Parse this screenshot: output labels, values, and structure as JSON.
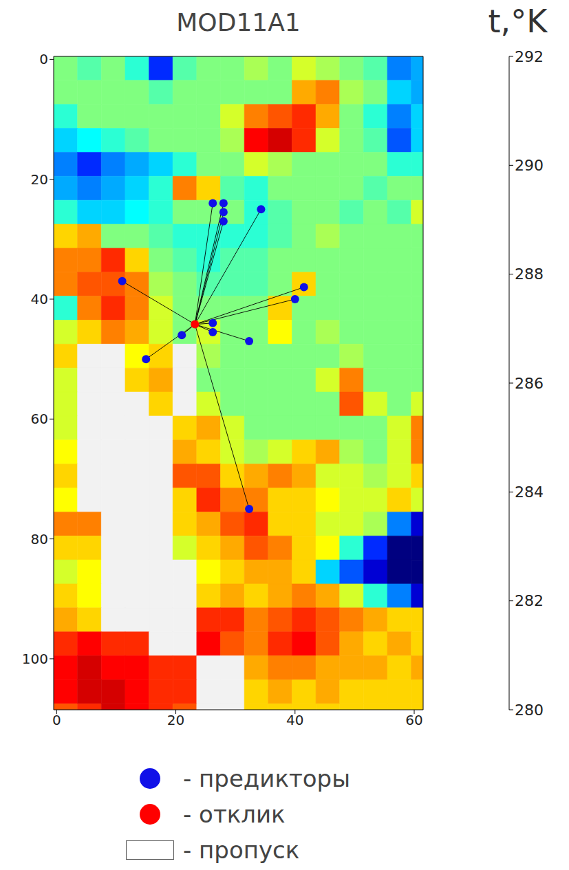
{
  "chart_data": {
    "type": "heatmap",
    "title": "MOD11A1",
    "xlim": [
      -0.5,
      61.5
    ],
    "xticks": [
      0,
      20,
      40,
      60
    ],
    "ylim": [
      108.5,
      -0.5
    ],
    "yticks": [
      0,
      20,
      40,
      60,
      80,
      100
    ],
    "legend": "bottom",
    "series": [
      {
        "name": "- предикторы",
        "color": "#1010e8",
        "type": "scatter",
        "marker": "circle",
        "line_style": "solid",
        "x": [
          26.2,
          28,
          28,
          28,
          34.3,
          11,
          41.5,
          40,
          26.2,
          26.2,
          32.3,
          21,
          15,
          32.3
        ],
        "y": [
          24,
          24,
          25.5,
          27,
          25,
          37,
          38,
          40,
          44,
          45.5,
          47,
          46,
          50,
          75
        ]
      },
      {
        "name": "- отклик",
        "color": "#ff0000",
        "type": "scatter",
        "marker": "circle",
        "x": [
          23.2
        ],
        "y": [
          44.2
        ]
      }
    ],
    "missing": {
      "name": "- пропуск",
      "color": "#f2f2f2"
    },
    "heatmap": {
      "x_edges": [
        -0.5,
        3.5,
        7.5,
        11.5,
        15.5,
        19.5,
        23.5,
        27.5,
        31.5,
        35.5,
        39.5,
        43.5,
        47.5,
        51.5,
        55.5,
        59.5,
        61.5
      ],
      "y_edges": [
        -0.5,
        3.5,
        7.5,
        11.5,
        15.5,
        19.5,
        23.5,
        27.5,
        31.5,
        35.5,
        39.5,
        43.5,
        47.5,
        51.5,
        55.5,
        59.5,
        63.5,
        67.5,
        71.5,
        75.5,
        79.5,
        83.5,
        87.5,
        91.5,
        95.5,
        99.5,
        103.5,
        107.5,
        108.5
      ],
      "cells": [
        [
          286,
          285.5,
          286,
          285,
          282,
          285.5,
          286,
          286,
          286.5,
          286,
          287,
          286.5,
          286,
          285.5,
          283,
          283.5
        ],
        [
          286,
          286,
          286,
          286,
          285.5,
          286,
          286,
          286,
          286,
          286,
          288.5,
          289,
          286.5,
          286,
          284,
          283.5
        ],
        [
          285,
          286,
          286,
          286,
          286,
          286,
          286,
          287,
          289,
          289.5,
          290,
          288.5,
          286,
          285,
          283,
          284
        ],
        [
          284,
          284.5,
          285,
          285.5,
          286,
          286,
          286,
          286.5,
          290.5,
          291,
          290,
          287,
          286,
          285.5,
          282.5,
          284
        ],
        [
          283,
          282,
          283,
          283.5,
          284,
          285,
          286,
          286,
          287,
          286.5,
          286,
          286,
          286,
          286,
          285,
          285
        ],
        [
          283.5,
          283,
          283.5,
          284,
          285,
          289,
          288,
          285.5,
          285,
          286,
          286,
          286,
          286,
          285.5,
          286,
          286
        ],
        [
          285,
          284,
          284,
          284.5,
          285,
          286,
          286,
          286,
          285,
          285.5,
          286,
          286,
          285.5,
          286,
          285.5,
          287
        ],
        [
          288,
          288.5,
          286,
          286,
          285.5,
          285,
          285,
          285,
          285,
          285.5,
          286,
          286.5,
          286,
          286,
          286,
          286
        ],
        [
          289,
          289,
          290,
          288,
          286,
          285.5,
          285,
          285.5,
          285.5,
          286,
          286,
          286,
          286,
          286,
          286,
          286
        ],
        [
          289,
          289.5,
          289.5,
          289,
          286.5,
          286,
          285.5,
          285.5,
          285.5,
          286,
          288,
          286,
          286,
          286,
          286,
          286
        ],
        [
          285,
          289,
          290,
          289,
          287,
          286,
          286,
          286,
          286,
          288,
          286,
          286,
          286,
          286,
          286,
          286
        ],
        [
          287,
          288,
          289,
          288.5,
          287,
          286,
          287,
          286,
          286,
          287.5,
          286,
          286.5,
          286,
          286,
          286,
          286
        ],
        [
          288,
          null,
          null,
          287.5,
          288,
          null,
          286.5,
          286,
          286,
          286,
          286,
          286,
          286.5,
          286,
          286,
          286
        ],
        [
          287,
          null,
          null,
          288,
          288.5,
          null,
          286,
          286,
          286,
          286,
          286,
          287,
          289,
          286,
          286,
          286
        ],
        [
          287,
          null,
          null,
          null,
          288,
          null,
          287,
          286,
          286,
          286,
          286,
          286,
          289.5,
          287,
          286,
          287
        ],
        [
          287,
          null,
          null,
          null,
          null,
          288,
          288.5,
          287,
          286,
          286,
          286,
          286,
          286,
          286,
          287,
          289
        ],
        [
          287.5,
          null,
          null,
          null,
          null,
          288.5,
          288,
          287,
          286.5,
          287,
          288,
          288.5,
          286.5,
          286,
          287,
          289
        ],
        [
          288,
          null,
          null,
          null,
          null,
          289.5,
          289.5,
          288,
          288.5,
          289,
          288.5,
          287,
          287,
          286.5,
          287,
          288
        ],
        [
          287.5,
          null,
          null,
          null,
          null,
          288,
          290,
          289,
          289,
          288,
          288,
          287.5,
          287,
          287,
          288,
          287
        ],
        [
          289,
          289,
          null,
          null,
          null,
          288,
          288.5,
          289.5,
          290,
          288,
          288,
          287,
          287,
          286.5,
          283,
          281
        ],
        [
          288,
          288,
          null,
          null,
          null,
          287,
          288,
          288.5,
          289.5,
          289,
          288,
          287.5,
          285,
          282,
          280,
          280
        ],
        [
          287,
          287.5,
          null,
          null,
          null,
          null,
          287.5,
          288,
          288.5,
          288.5,
          288,
          284,
          282.5,
          281,
          280,
          280
        ],
        [
          288,
          287.5,
          null,
          null,
          null,
          null,
          288,
          288.5,
          288,
          288.5,
          289,
          288.5,
          287,
          285,
          283,
          281
        ],
        [
          288.5,
          288,
          null,
          null,
          null,
          null,
          290,
          290,
          289,
          289.5,
          290,
          289.5,
          289,
          288.5,
          288,
          288
        ],
        [
          290,
          290.5,
          290,
          290,
          null,
          null,
          290.5,
          289.5,
          289,
          290,
          290.5,
          289.5,
          288.5,
          288,
          288.5,
          288
        ],
        [
          290.5,
          291,
          290.5,
          290.5,
          290,
          290,
          null,
          null,
          288.5,
          289,
          289,
          288.5,
          288.5,
          288.5,
          288,
          288.5
        ],
        [
          290.5,
          291,
          291,
          290.5,
          290,
          290,
          null,
          null,
          288,
          288.5,
          288,
          288.5,
          288,
          288,
          288,
          288
        ],
        [
          289.5,
          290,
          291,
          290.5,
          290,
          289.5,
          null,
          null,
          288,
          288,
          288,
          288,
          288,
          288,
          288,
          288
        ]
      ],
      "colorbar": {
        "label": "t,°K",
        "range": [
          280,
          292
        ],
        "ticks": [
          280,
          282,
          284,
          286,
          288,
          290,
          292
        ]
      }
    }
  }
}
